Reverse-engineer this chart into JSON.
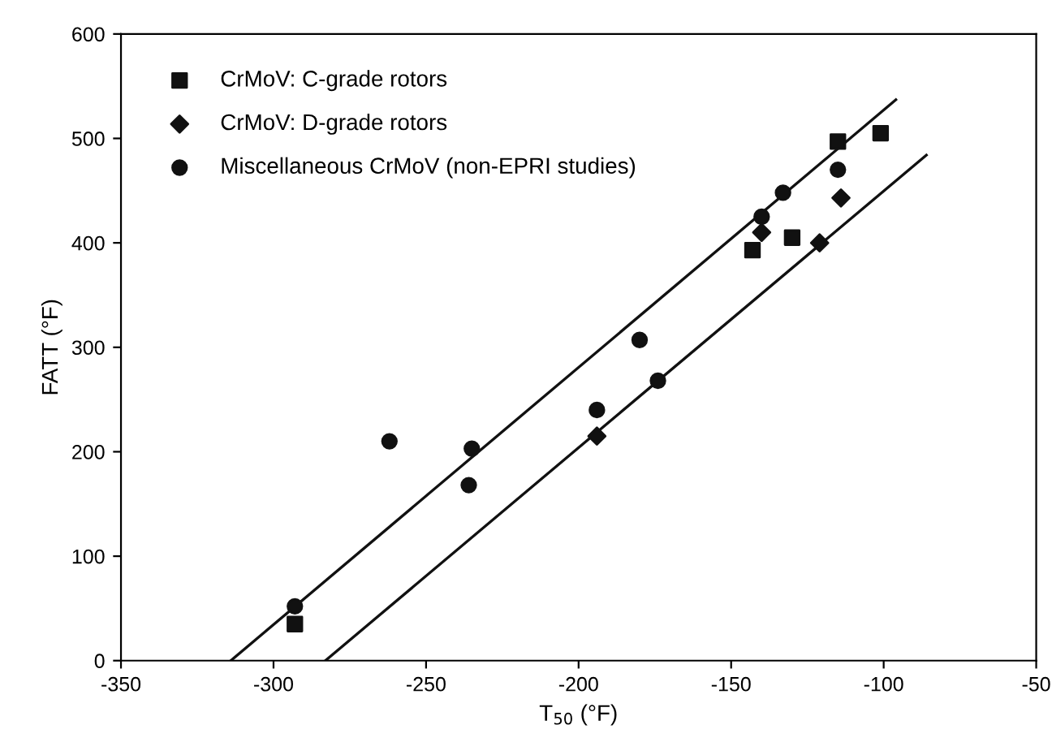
{
  "chart_data": {
    "type": "scatter",
    "xlabel": "T$_{50}$ (°F)",
    "ylabel": "FATT (°F)",
    "xlim": [
      -350,
      -50
    ],
    "ylim": [
      0,
      600
    ],
    "xticks": [
      -350,
      -300,
      -250,
      -200,
      -150,
      -100,
      -50
    ],
    "yticks": [
      0,
      100,
      200,
      300,
      400,
      500,
      600
    ],
    "grid": false,
    "legend": "top left",
    "series": [
      {
        "name": "CrMoV: C-grade rotors",
        "color": "#111111",
        "marker": "square",
        "x": [
          -293,
          -143,
          -140,
          -130,
          -115,
          -101
        ],
        "values": [
          35,
          393,
          null,
          405,
          497,
          505
        ]
      },
      {
        "name": "CrMoV: D-grade rotors",
        "color": "#111111",
        "marker": "diamond",
        "x": [
          -140,
          -114,
          -121,
          -194
        ],
        "values": [
          410,
          443,
          400,
          215
        ]
      },
      {
        "name": "Miscellaneous CrMoV (non-EPRI studies)",
        "color": "#111111",
        "marker": "circle",
        "x": [
          -293,
          -262,
          -235,
          -236,
          -194,
          -180,
          -174,
          -133,
          -115,
          -140
        ],
        "values": [
          52,
          210,
          203,
          168,
          240,
          307,
          268,
          448,
          470,
          425
        ]
      },
      {
        "type": "line",
        "color": "#111111",
        "marker": "none",
        "x": [
          -314,
          -96
        ],
        "values": [
          0,
          537
        ]
      },
      {
        "type": "line",
        "color": "#111111",
        "marker": "none",
        "x": [
          -283,
          -86
        ],
        "values": [
          0,
          484
        ]
      }
    ]
  }
}
